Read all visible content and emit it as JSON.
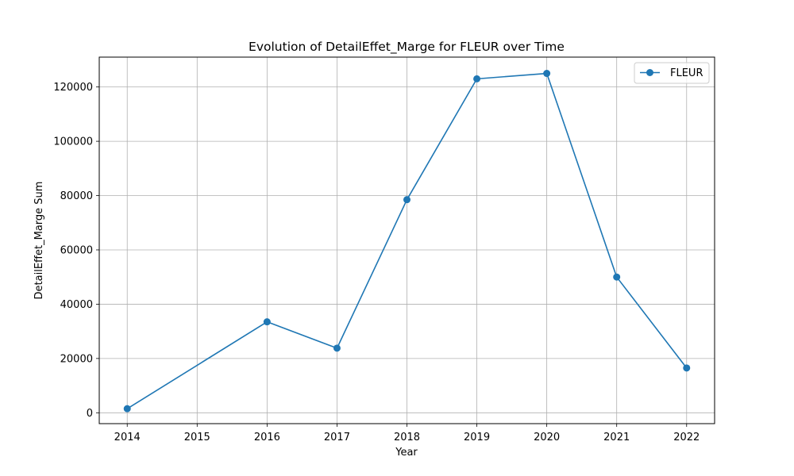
{
  "chart_data": {
    "type": "line",
    "title": "Evolution of DetailEffet_Marge for FLEUR over Time",
    "xlabel": "Year",
    "ylabel": "DetailEffet_Marge Sum",
    "x": [
      2014,
      2016,
      2017,
      2018,
      2019,
      2020,
      2021,
      2022
    ],
    "x_ticks": [
      "2014",
      "2015",
      "2016",
      "2017",
      "2018",
      "2019",
      "2020",
      "2021",
      "2022"
    ],
    "y_ticks": [
      "0",
      "20000",
      "40000",
      "60000",
      "80000",
      "100000",
      "120000"
    ],
    "xlim": [
      2013.6,
      2022.4
    ],
    "ylim": [
      -4000,
      131000
    ],
    "grid": true,
    "legend_position": "top-right",
    "series": [
      {
        "name": "FLEUR",
        "color": "#1f77b4",
        "marker": "circle",
        "values": [
          1500,
          33500,
          23800,
          78500,
          123000,
          125000,
          50000,
          16500
        ]
      }
    ]
  }
}
